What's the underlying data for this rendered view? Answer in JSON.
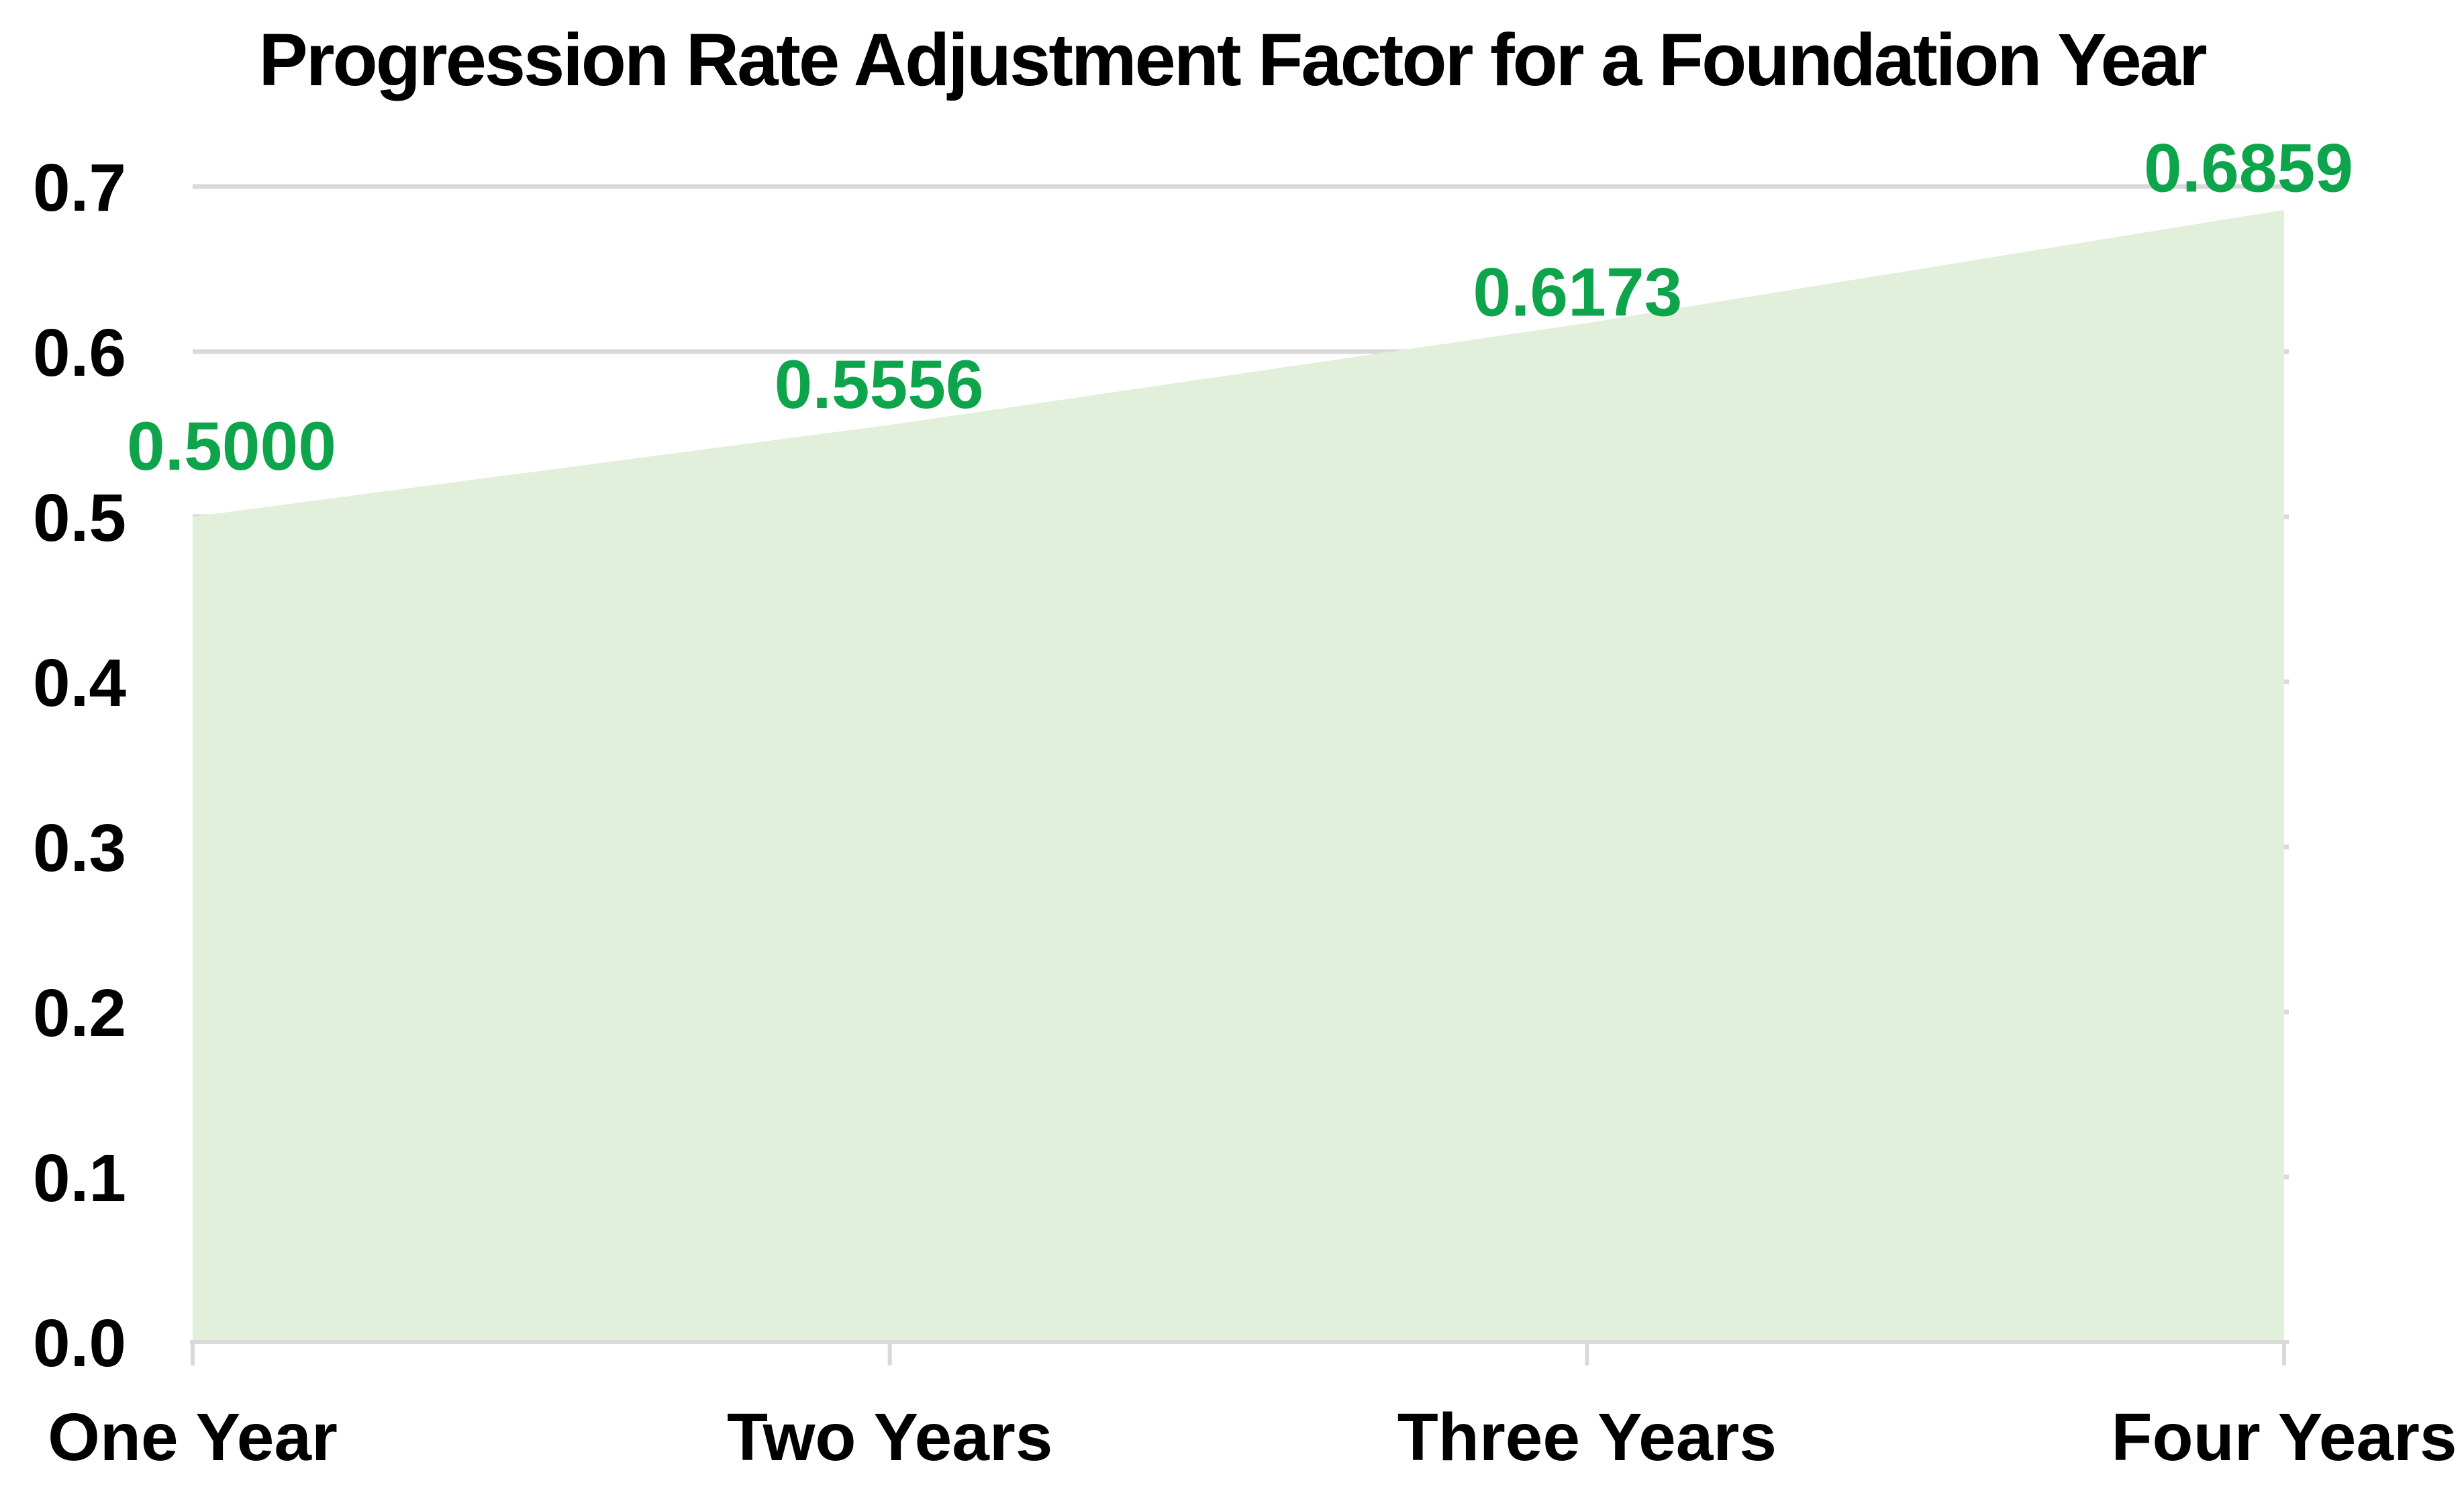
{
  "page": {
    "background": "#FFFFFF"
  },
  "chart_data": {
    "type": "area",
    "title": "Progression Rate Adjustment Factor for a Foundation Year",
    "categories": [
      "One Year",
      "Two Years",
      "Three Years",
      "Four Years"
    ],
    "values": [
      0.5,
      0.5556,
      0.6173,
      0.6859
    ],
    "data_labels": [
      "0.5000",
      "0.5556",
      "0.6173",
      "0.6859"
    ],
    "series_name": "Progression Rate Adjustment Factor",
    "xlabel": "",
    "ylabel": "",
    "ylim": [
      0,
      0.7
    ],
    "y_tick_labels": [
      "0.0",
      "0.1",
      "0.2",
      "0.3",
      "0.4",
      "0.5",
      "0.6",
      "0.7"
    ],
    "y_tick_step": 0.1,
    "grid": true,
    "legend_position": "none",
    "data_label_position": "above-point",
    "colors": {
      "area_fill": "#E2EFDA",
      "data_label_text": "#0DA44C",
      "gridline": "#D9D9D9",
      "axis_line": "#D9D9D9",
      "axis_text": "#000000",
      "title_text": "#000000",
      "background": "#FFFFFF"
    }
  }
}
